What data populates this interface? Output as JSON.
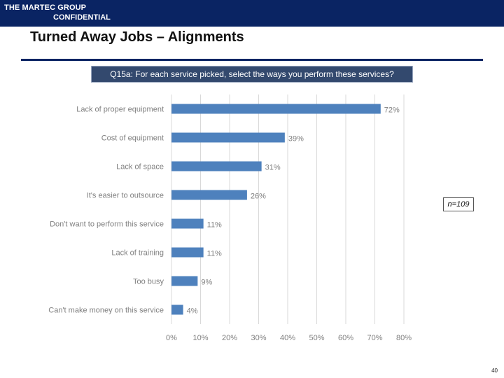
{
  "header": {
    "brand": "THE MARTEC GROUP",
    "confidential": "CONFIDENTIAL",
    "color": "#0a2463"
  },
  "title": "Turned Away Jobs – Alignments",
  "question": "Q15a: For each service picked, select the ways you perform these services?",
  "sample_size": "n=109",
  "page_number": "40",
  "chart_data": {
    "type": "bar",
    "orientation": "horizontal",
    "categories": [
      "Lack of proper equipment",
      "Cost of equipment",
      "Lack of space",
      "It's easier to outsource",
      "Don't want to perform this service",
      "Lack of training",
      "Too busy",
      "Can't make money on this service"
    ],
    "values": [
      72,
      39,
      31,
      26,
      11,
      11,
      9,
      4
    ],
    "value_labels": [
      "72%",
      "39%",
      "31%",
      "26%",
      "11%",
      "11%",
      "9%",
      "4%"
    ],
    "xlim": [
      0,
      80
    ],
    "xticks": [
      "0%",
      "10%",
      "20%",
      "30%",
      "40%",
      "50%",
      "60%",
      "70%",
      "80%"
    ],
    "gridlines": true,
    "bar_color": "#4e81bd",
    "grid_color": "#d9d9d9"
  }
}
